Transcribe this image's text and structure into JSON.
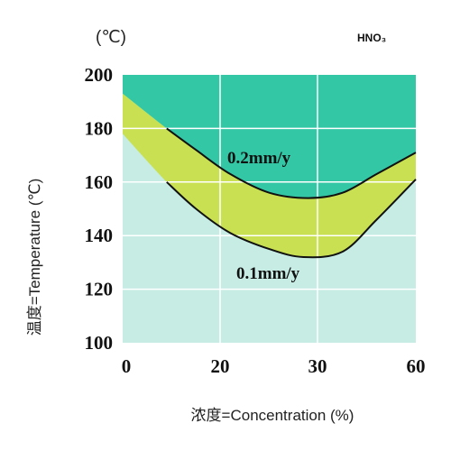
{
  "chart_data": {
    "type": "area",
    "unit_label": "(℃)",
    "title": "HNO₃",
    "ylabel": "温度=Temperature (℃)",
    "xlabel": "浓度=Concentration (%)",
    "x_ticks": [
      "0",
      "20",
      "30",
      "60"
    ],
    "y_ticks": [
      "100",
      "120",
      "140",
      "160",
      "180",
      "200"
    ],
    "ylim": [
      100,
      200
    ],
    "grid": true,
    "colors": {
      "upper_region": "#33c7a6",
      "band_region": "#c9e052",
      "lower_region": "#c6ece4",
      "curve": "#111111"
    },
    "series": [
      {
        "name": "0.2mm/y",
        "x": [
          9,
          15,
          22,
          30,
          38,
          45,
          52,
          60
        ],
        "y": [
          180,
          172,
          163,
          156,
          154,
          156,
          163,
          171
        ]
      },
      {
        "name": "0.1mm/y",
        "x": [
          9,
          15,
          22,
          30,
          37,
          45,
          52,
          60
        ],
        "y": [
          160,
          150,
          141,
          135,
          132,
          134,
          146,
          161
        ]
      }
    ]
  }
}
